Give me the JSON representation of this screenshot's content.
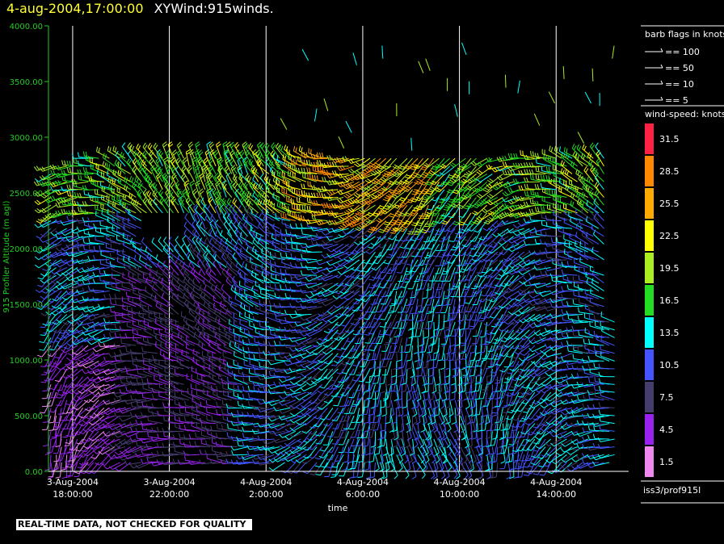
{
  "header": {
    "date_label": "4-aug-2004,17:00:00",
    "product_label": "XYWind:915winds."
  },
  "footer": {
    "disclaimer": "REAL-TIME DATA, NOT CHECKED FOR QUALITY",
    "source_label": "iss3/prof915l"
  },
  "legend": {
    "barb_title": "barb flags in knots",
    "barbs": [
      "== 100",
      "== 50",
      "== 10",
      "== 5"
    ],
    "speed_title": "wind-speed: knots",
    "speed_levels": [
      {
        "label": "31.5",
        "color": "#ff2244"
      },
      {
        "label": "28.5",
        "color": "#ff8800"
      },
      {
        "label": "25.5",
        "color": "#ffaa00"
      },
      {
        "label": "22.5",
        "color": "#ffff00"
      },
      {
        "label": "19.5",
        "color": "#aaee22"
      },
      {
        "label": "16.5",
        "color": "#22dd22"
      },
      {
        "label": "13.5",
        "color": "#00ffff"
      },
      {
        "label": "10.5",
        "color": "#4455ff"
      },
      {
        "label": "7.5",
        "color": "#443d6e"
      },
      {
        "label": "4.5",
        "color": "#9922ee"
      },
      {
        "label": "1.5",
        "color": "#ee88ee"
      }
    ]
  },
  "chart_data": {
    "type": "scatter",
    "subtype": "wind-barb time-height",
    "xlabel": "time",
    "ylabel": "915 Profiler Altitude (m agl)",
    "ylim": [
      0,
      4000
    ],
    "yticks": [
      "0.00",
      "500.00",
      "1000.00",
      "1500.00",
      "2000.00",
      "2500.00",
      "3000.00",
      "3500.00",
      "4000.00"
    ],
    "xticks": [
      {
        "date": "3-Aug-2004",
        "time": "18:00:00"
      },
      {
        "date": "3-Aug-2004",
        "time": "22:00:00"
      },
      {
        "date": "4-Aug-2004",
        "time": "2:00:00"
      },
      {
        "date": "4-Aug-2004",
        "time": "6:00:00"
      },
      {
        "date": "4-Aug-2004",
        "time": "10:00:00"
      },
      {
        "date": "4-Aug-2004",
        "time": "14:00:00"
      }
    ],
    "x_hours_range": [
      17.0,
      41.0
    ],
    "grid": "vertical lines at x ticks",
    "colors": {
      "axis": "#22cc22",
      "grid": "#ffffff"
    }
  }
}
